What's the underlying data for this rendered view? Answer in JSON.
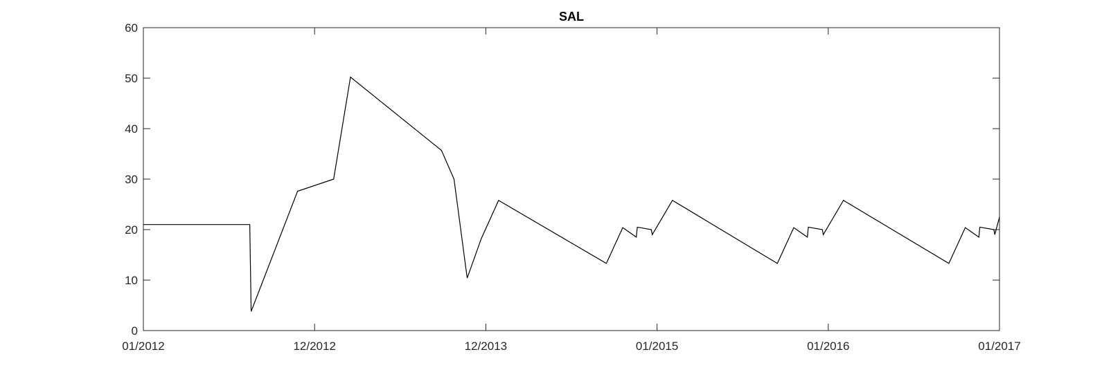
{
  "chart_data": {
    "type": "line",
    "title": "SAL",
    "xlabel": "",
    "ylabel": "",
    "xlim": [
      "01/2012",
      "01/2017"
    ],
    "ylim": [
      0,
      60
    ],
    "grid": false,
    "legend": "none",
    "x_tick_labels": [
      "01/2012",
      "12/2012",
      "12/2013",
      "01/2015",
      "01/2016",
      "01/2017"
    ],
    "y_tick_labels": [
      "0",
      "10",
      "20",
      "30",
      "40",
      "50",
      "60"
    ],
    "y_ticks": [
      0,
      10,
      20,
      30,
      40,
      50,
      60
    ],
    "line_color": "#000000",
    "series": [
      {
        "points": [
          [
            "2012-01-01",
            21.0
          ],
          [
            "2012-08-15",
            21.0
          ],
          [
            "2012-08-18",
            3.8
          ],
          [
            "2012-11-25",
            27.6
          ],
          [
            "2013-02-10",
            30.0
          ],
          [
            "2013-03-18",
            50.2
          ],
          [
            "2013-09-28",
            35.7
          ],
          [
            "2013-10-25",
            30.0
          ],
          [
            "2013-11-22",
            10.4
          ],
          [
            "2013-12-22",
            18.2
          ],
          [
            "2014-01-28",
            25.8
          ],
          [
            "2014-09-15",
            13.3
          ],
          [
            "2014-10-20",
            20.4
          ],
          [
            "2014-11-18",
            18.5
          ],
          [
            "2014-11-20",
            20.5
          ],
          [
            "2014-12-20",
            20.0
          ],
          [
            "2014-12-22",
            19.0
          ],
          [
            "2015-02-03",
            25.8
          ],
          [
            "2015-09-15",
            13.3
          ],
          [
            "2015-10-20",
            20.4
          ],
          [
            "2015-11-18",
            18.5
          ],
          [
            "2015-11-20",
            20.5
          ],
          [
            "2015-12-20",
            20.0
          ],
          [
            "2015-12-22",
            19.0
          ],
          [
            "2016-02-03",
            25.8
          ],
          [
            "2016-09-15",
            13.3
          ],
          [
            "2016-10-20",
            20.4
          ],
          [
            "2016-11-18",
            18.5
          ],
          [
            "2016-11-20",
            20.5
          ],
          [
            "2016-12-20",
            20.0
          ],
          [
            "2016-12-22",
            19.0
          ],
          [
            "2017-01-01",
            22.5
          ]
        ]
      }
    ]
  }
}
